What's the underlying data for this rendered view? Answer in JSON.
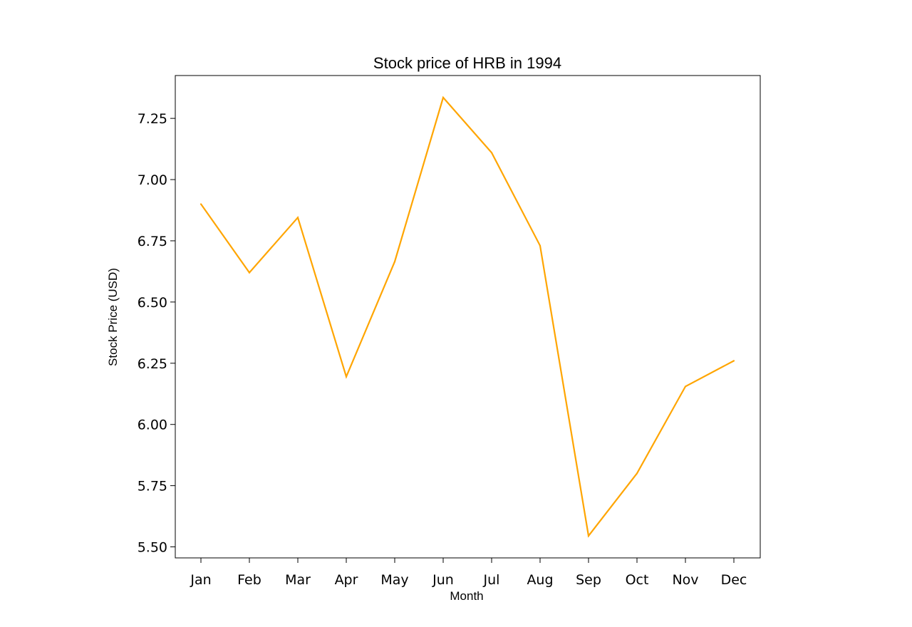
{
  "chart_data": {
    "type": "line",
    "title": "Stock price of HRB in 1994",
    "xlabel": "Month",
    "ylabel": "Stock Price (USD)",
    "categories": [
      "Jan",
      "Feb",
      "Mar",
      "Apr",
      "May",
      "Jun",
      "Jul",
      "Aug",
      "Sep",
      "Oct",
      "Nov",
      "Dec"
    ],
    "series": [
      {
        "values": [
          6.9,
          6.62,
          6.845,
          6.195,
          6.665,
          7.335,
          7.11,
          6.73,
          5.545,
          5.8,
          6.155,
          6.26
        ],
        "color": "#FFA500"
      }
    ],
    "ylim": [
      5.455,
      7.425
    ],
    "yticks": [
      5.5,
      5.75,
      6.0,
      6.25,
      6.5,
      6.75,
      7.0,
      7.25
    ],
    "ytick_labels": [
      "5.50",
      "5.75",
      "6.00",
      "6.25",
      "6.50",
      "6.75",
      "7.00",
      "7.25"
    ],
    "grid": false,
    "legend": "none"
  }
}
